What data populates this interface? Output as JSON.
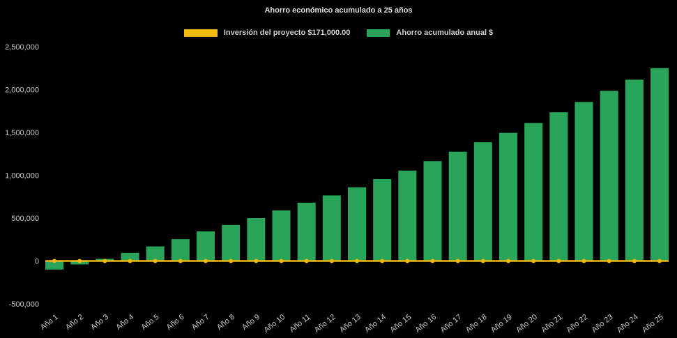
{
  "title": "Ahorro económico acumulado a 25 años",
  "legend": {
    "investment": {
      "label": "Inversión del proyecto $171,000.00",
      "color": "#F0B810"
    },
    "savings": {
      "label": "Ahorro acumulado anual $",
      "color": "#28A558"
    }
  },
  "colors": {
    "background": "#000000",
    "axis_text": "#C9C9C9",
    "title_text": "#DEDEDE"
  },
  "chart_data": {
    "type": "bar",
    "title": "Ahorro económico acumulado a 25 años",
    "categories": [
      "Año 1",
      "Año 2",
      "Año 3",
      "Año 4",
      "Año 5",
      "Año 6",
      "Año 7",
      "Año 8",
      "Año 9",
      "Año 10",
      "Año 11",
      "Año 12",
      "Año 13",
      "Año 14",
      "Año 15",
      "Año 16",
      "Año 17",
      "Año 18",
      "Año 19",
      "Año 20",
      "Año 21",
      "Año 22",
      "Año 23",
      "Año 24",
      "Año 25"
    ],
    "series": [
      {
        "name": "Ahorro acumulado anual $",
        "type": "bar",
        "color": "#28A558",
        "values": [
          -100000,
          -40000,
          25000,
          95000,
          170000,
          255000,
          345000,
          420000,
          500000,
          590000,
          680000,
          765000,
          860000,
          955000,
          1055000,
          1165000,
          1275000,
          1385000,
          1495000,
          1610000,
          1735000,
          1855000,
          1985000,
          2115000,
          2250000
        ]
      },
      {
        "name": "Inversión del proyecto $171,000.00",
        "type": "line",
        "color": "#F0B810",
        "constant_value": 0
      }
    ],
    "ylim": [
      -500000,
      2500000
    ],
    "y_ticks": [
      -500000,
      0,
      500000,
      1000000,
      1500000,
      2000000,
      2500000
    ],
    "y_tick_labels": [
      "-500,000",
      "0",
      "500,000",
      "1,000,000",
      "1,500,000",
      "2,000,000",
      "2,500,000"
    ],
    "grid": false,
    "legend_position": "top",
    "background": "#000000"
  }
}
